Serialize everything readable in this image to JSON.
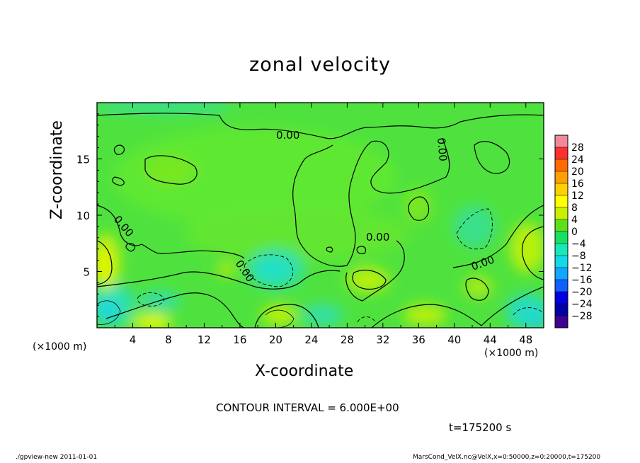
{
  "chart_data": {
    "type": "heatmap",
    "title": "zonal velocity",
    "xlabel": "X-coordinate",
    "ylabel": "Z-coordinate",
    "x_unit_left": "(×1000 m)",
    "x_unit_right": "(×1000 m)",
    "xlim": [
      0,
      50
    ],
    "ylim": [
      0,
      20
    ],
    "xticks": [
      4,
      8,
      12,
      16,
      20,
      24,
      28,
      32,
      36,
      40,
      44,
      48
    ],
    "xtick_labels": [
      "4",
      "8",
      "12",
      "16",
      "20",
      "24",
      "28",
      "32",
      "36",
      "40",
      "44",
      "48"
    ],
    "yticks": [
      5,
      10,
      15
    ],
    "ytick_labels": [
      "5",
      "10",
      "15"
    ],
    "colorbar": {
      "levels": [
        28,
        24,
        20,
        16,
        12,
        8,
        4,
        0,
        -4,
        -8,
        -12,
        -16,
        -20,
        -24,
        -28
      ],
      "labels": [
        "28",
        "24",
        "20",
        "16",
        "12",
        "8",
        "4",
        "0",
        "−4",
        "−8",
        "−12",
        "−16",
        "−20",
        "−24",
        "−28"
      ],
      "colors": [
        "#f08a9a",
        "#ff3030",
        "#ff6a00",
        "#ffa000",
        "#ffd000",
        "#ffff00",
        "#c8f000",
        "#5ee018",
        "#18e060",
        "#18e8b8",
        "#14d8e8",
        "#10a8ff",
        "#1060ff",
        "#0000e0",
        "#0000a8",
        "#400090"
      ]
    },
    "contour_labels": [
      "0.00",
      "0.00",
      "0.00",
      "0.00",
      "0.00",
      "0.00"
    ],
    "contour_interval": "CONTOUR INTERVAL = 6.000E+00",
    "time": "t=175200 s"
  },
  "footer": {
    "left": "./gpview-new  2011-01-01",
    "right": "MarsCond_VelX.nc@VelX,x=0:50000,z=0:20000,t=175200"
  }
}
